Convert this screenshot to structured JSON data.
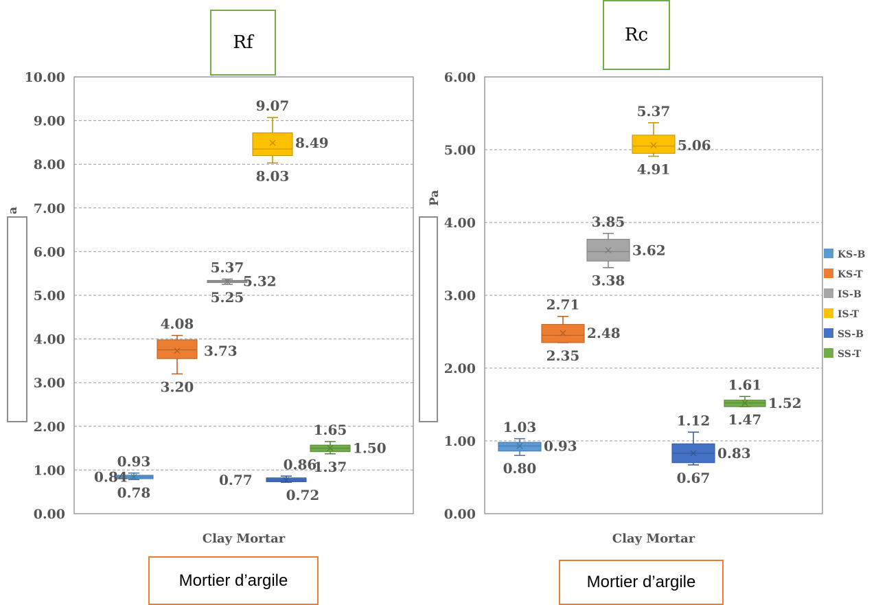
{
  "legend": [
    {
      "name": "KS-B",
      "color": "#5b9bd5"
    },
    {
      "name": "KS-T",
      "color": "#ed7d31"
    },
    {
      "name": "IS-B",
      "color": "#a5a5a5"
    },
    {
      "name": "IS-T",
      "color": "#ffc000"
    },
    {
      "name": "SS-B",
      "color": "#4472c4"
    },
    {
      "name": "SS-T",
      "color": "#70ad47"
    }
  ],
  "chart_data": [
    {
      "type": "box",
      "title": "Rf",
      "xlabel": "Clay Mortar",
      "caption": "Mortier d’argile",
      "ylim": [
        0,
        10
      ],
      "yticks": [
        "0.00",
        "1.00",
        "2.00",
        "3.00",
        "4.00",
        "5.00",
        "6.00",
        "7.00",
        "8.00",
        "9.00",
        "10.00"
      ],
      "grid": true,
      "series": [
        {
          "name": "KS-B",
          "q1": 0.8,
          "q3": 0.88,
          "median": 0.84,
          "mean": 0.84,
          "min": 0.78,
          "max": 0.93,
          "labels": {
            "max": "0.93",
            "mean": "0.84",
            "min": "0.78"
          }
        },
        {
          "name": "KS-T",
          "q1": 3.55,
          "q3": 3.98,
          "median": 3.75,
          "mean": 3.73,
          "min": 3.2,
          "max": 4.08,
          "labels": {
            "max": "4.08",
            "mean": "3.73",
            "min": "3.20"
          }
        },
        {
          "name": "IS-B",
          "q1": 5.29,
          "q3": 5.34,
          "median": 5.32,
          "mean": 5.32,
          "min": 5.25,
          "max": 5.37,
          "labels": {
            "max": "5.37",
            "mean": "5.32",
            "min": "5.25"
          }
        },
        {
          "name": "IS-T",
          "q1": 8.2,
          "q3": 8.72,
          "median": 8.35,
          "mean": 8.49,
          "min": 8.03,
          "max": 9.07,
          "labels": {
            "max": "9.07",
            "mean": "8.49",
            "min": "8.03"
          }
        },
        {
          "name": "SS-B",
          "q1": 0.73,
          "q3": 0.82,
          "median": 0.77,
          "mean": 0.77,
          "min": 0.72,
          "max": 0.86,
          "labels": {
            "max": "0.86",
            "mean": "0.77",
            "min": "0.72"
          }
        },
        {
          "name": "SS-T",
          "q1": 1.42,
          "q3": 1.57,
          "median": 1.5,
          "mean": 1.5,
          "min": 1.37,
          "max": 1.65,
          "labels": {
            "max": "1.65",
            "mean": "1.50",
            "min": "1.37"
          }
        }
      ]
    },
    {
      "type": "box",
      "title": "Rc",
      "xlabel": "Clay Mortar",
      "caption": "Mortier d’argile",
      "ylim": [
        0,
        6
      ],
      "yticks": [
        "0.00",
        "1.00",
        "2.00",
        "3.00",
        "4.00",
        "5.00",
        "6.00"
      ],
      "grid": true,
      "series": [
        {
          "name": "KS-B",
          "q1": 0.86,
          "q3": 0.98,
          "median": 0.93,
          "mean": 0.93,
          "min": 0.8,
          "max": 1.03,
          "labels": {
            "max": "1.03",
            "mean": "0.93",
            "min": "0.80"
          }
        },
        {
          "name": "KS-T",
          "q1": 2.35,
          "q3": 2.6,
          "median": 2.45,
          "mean": 2.48,
          "min": 2.35,
          "max": 2.71,
          "labels": {
            "max": "2.71",
            "mean": "2.48",
            "min": "2.35"
          }
        },
        {
          "name": "IS-B",
          "q1": 3.47,
          "q3": 3.77,
          "median": 3.6,
          "mean": 3.62,
          "min": 3.38,
          "max": 3.85,
          "labels": {
            "max": "3.85",
            "mean": "3.62",
            "min": "3.38"
          }
        },
        {
          "name": "IS-T",
          "q1": 4.95,
          "q3": 5.2,
          "median": 5.05,
          "mean": 5.06,
          "min": 4.91,
          "max": 5.37,
          "labels": {
            "max": "5.37",
            "mean": "5.06",
            "min": "4.91"
          }
        },
        {
          "name": "SS-B",
          "q1": 0.7,
          "q3": 0.96,
          "median": 0.83,
          "mean": 0.83,
          "min": 0.67,
          "max": 1.12,
          "labels": {
            "max": "1.12",
            "mean": "0.83",
            "min": "0.67"
          }
        },
        {
          "name": "SS-T",
          "q1": 1.47,
          "q3": 1.56,
          "median": 1.52,
          "mean": 1.52,
          "min": 1.47,
          "max": 1.61,
          "labels": {
            "max": "1.61",
            "mean": "1.52",
            "min": "1.47"
          }
        }
      ]
    }
  ],
  "axis_fragments": {
    "left": "a",
    "right": "Pa"
  }
}
